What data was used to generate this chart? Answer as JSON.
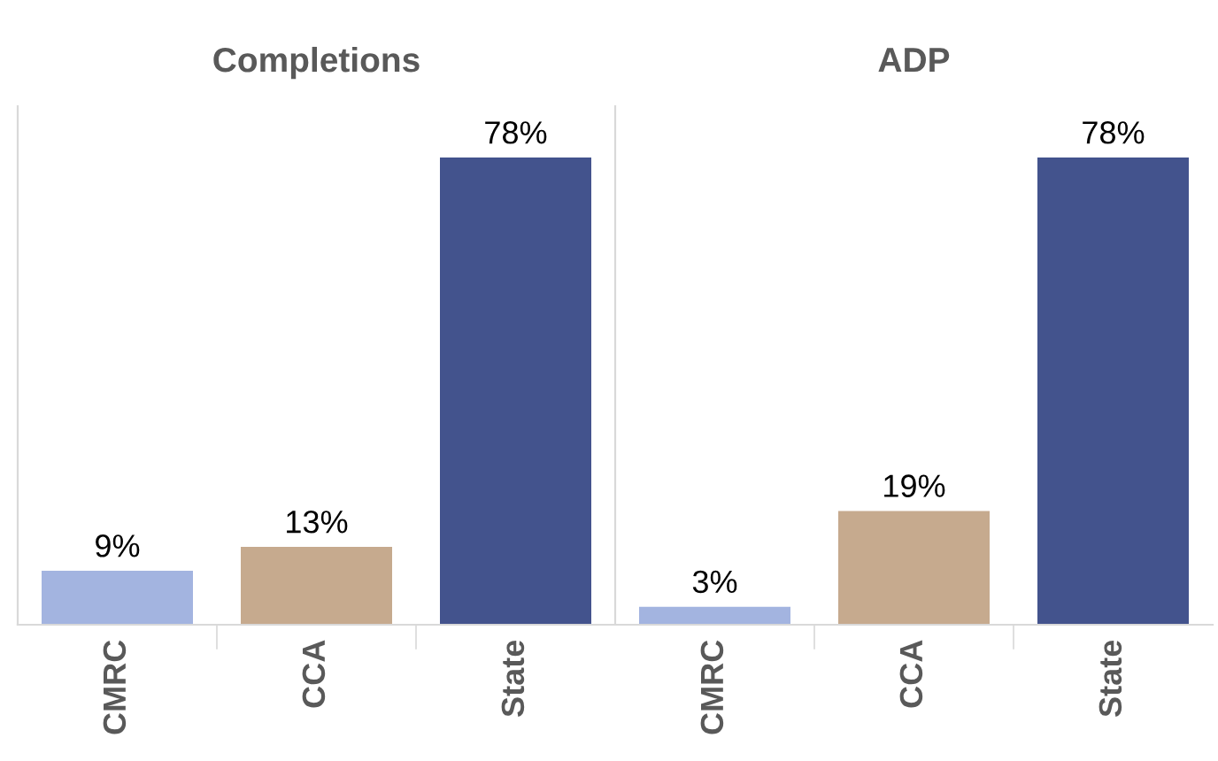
{
  "chart_data": [
    {
      "type": "bar",
      "title": "Completions",
      "categories": [
        "CMRC",
        "CCA",
        "State"
      ],
      "values": [
        9,
        13,
        78
      ],
      "colors": [
        "#a3b4e0",
        "#c6aa8e",
        "#43538d"
      ],
      "value_labels": [
        "9%",
        "13%",
        "78%"
      ]
    },
    {
      "type": "bar",
      "title": "ADP",
      "categories": [
        "CMRC",
        "CCA",
        "State"
      ],
      "values": [
        3,
        19,
        78
      ],
      "colors": [
        "#a3b4e0",
        "#c6aa8e",
        "#43538d"
      ],
      "value_labels": [
        "3%",
        "19%",
        "78%"
      ]
    }
  ]
}
